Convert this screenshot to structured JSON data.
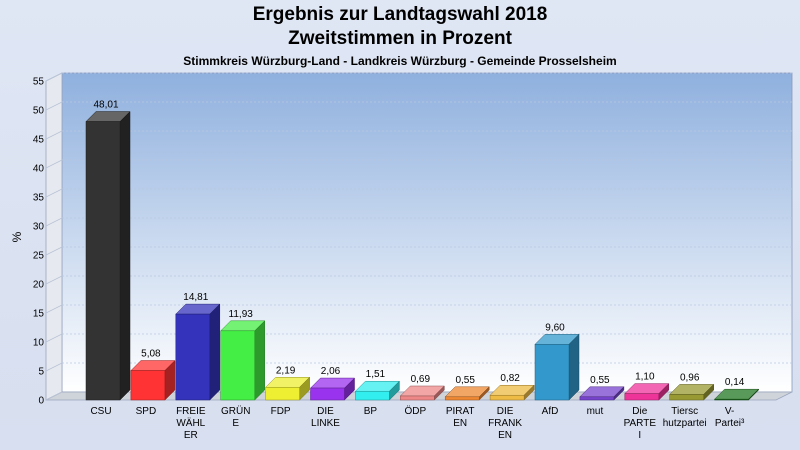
{
  "header": {
    "title_line1": "Ergebnis zur Landtagswahl 2018",
    "title_line2": "Zweitstimmen in Prozent",
    "subtitle": "Stimmkreis Würzburg-Land - Landkreis Würzburg - Gemeinde Prosselsheim"
  },
  "chart_data": {
    "type": "bar",
    "title": "Ergebnis zur Landtagswahl 2018 Zweitstimmen in Prozent",
    "subtitle": "Stimmkreis Würzburg-Land - Landkreis Würzburg - Gemeinde Prosselsheim",
    "ylabel": "%",
    "xlabel": "",
    "ylim": [
      0,
      55
    ],
    "yticks": [
      0,
      5,
      10,
      15,
      20,
      25,
      30,
      35,
      40,
      45,
      50,
      55
    ],
    "grid": true,
    "categories": [
      [
        "CSU"
      ],
      [
        "SPD"
      ],
      [
        "FREIE",
        "WÄHL",
        "ER"
      ],
      [
        "GRÜN",
        "E"
      ],
      [
        "FDP"
      ],
      [
        "DIE",
        "LINKE"
      ],
      [
        "BP"
      ],
      [
        "ÖDP"
      ],
      [
        "PIRAT",
        "EN"
      ],
      [
        "DIE",
        "FRANK",
        "EN"
      ],
      [
        "AfD"
      ],
      [
        "mut"
      ],
      [
        "Die",
        "PARTE",
        "I"
      ],
      [
        "Tiersc",
        "hutzpartei"
      ],
      [
        "V-",
        "Partei³"
      ]
    ],
    "values": [
      48.01,
      5.08,
      14.81,
      11.93,
      2.19,
      2.06,
      1.51,
      0.69,
      0.55,
      0.82,
      9.6,
      0.55,
      1.1,
      0.96,
      0.14
    ],
    "value_labels": [
      "48,01",
      "5,08",
      "14,81",
      "11,93",
      "2,19",
      "2,06",
      "1,51",
      "0,69",
      "0,55",
      "0,82",
      "9,60",
      "0,55",
      "1,10",
      "0,96",
      "0,14"
    ],
    "colors": [
      "#333333",
      "#ff3333",
      "#3333bb",
      "#44ee44",
      "#eeee33",
      "#9933ee",
      "#33eeee",
      "#ee8888",
      "#ee8833",
      "#eebb44",
      "#3399cc",
      "#7744cc",
      "#ee3399",
      "#999933",
      "#227722"
    ]
  }
}
